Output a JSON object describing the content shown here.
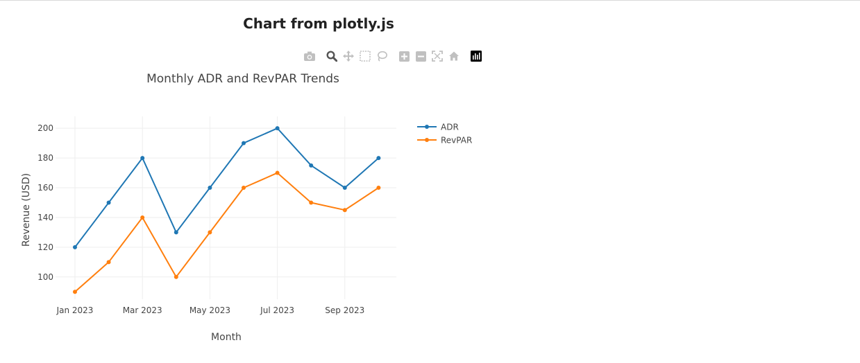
{
  "page": {
    "title": "Chart from plotly.js"
  },
  "modebar": {
    "buttons": [
      "camera-icon",
      "zoom-icon",
      "pan-icon",
      "box-select-icon",
      "lasso-icon",
      "zoom-in-icon",
      "zoom-out-icon",
      "autoscale-icon",
      "reset-axes-icon",
      "plotly-logo-icon"
    ]
  },
  "chart_data": {
    "type": "line",
    "title": "Monthly ADR and RevPAR Trends",
    "xlabel": "Month",
    "ylabel": "Revenue (USD)",
    "x": [
      "2023-01",
      "2023-02",
      "2023-03",
      "2023-04",
      "2023-05",
      "2023-06",
      "2023-07",
      "2023-08",
      "2023-09",
      "2023-10"
    ],
    "x_tick_labels": [
      "Jan 2023",
      "Mar 2023",
      "May 2023",
      "Jul 2023",
      "Sep 2023"
    ],
    "y_ticks": [
      100,
      120,
      140,
      160,
      180,
      200
    ],
    "ylim": [
      85,
      208
    ],
    "series": [
      {
        "name": "ADR",
        "color": "#1f77b4",
        "values": [
          120,
          150,
          180,
          130,
          160,
          190,
          200,
          175,
          160,
          180
        ]
      },
      {
        "name": "RevPAR",
        "color": "#ff7f0e",
        "values": [
          90,
          110,
          140,
          100,
          130,
          160,
          170,
          150,
          145,
          160
        ]
      }
    ],
    "mode": "lines+markers",
    "grid": true,
    "legend_position": "top-right"
  }
}
